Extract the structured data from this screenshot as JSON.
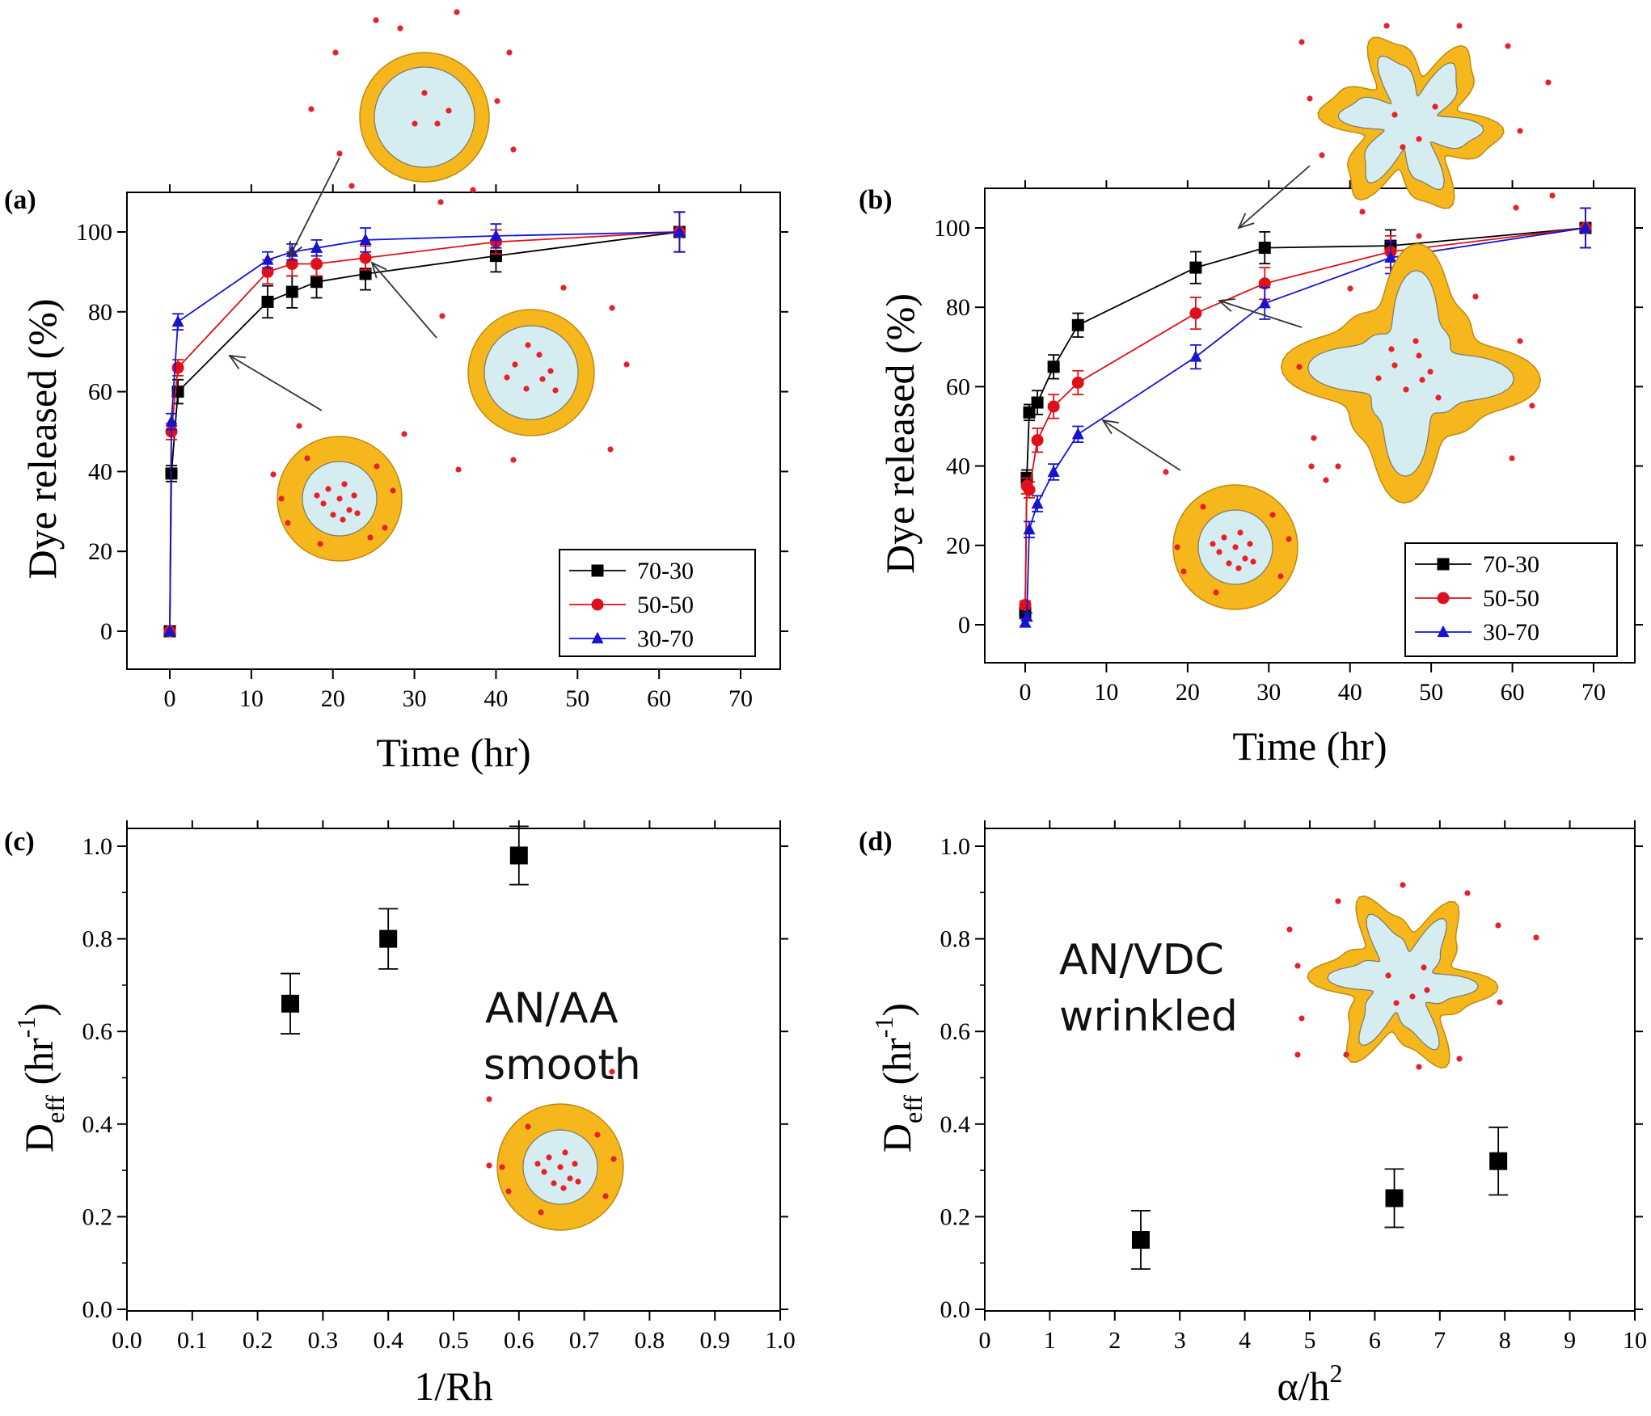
{
  "chart_data": [
    {
      "panel": "(a)",
      "type": "line",
      "xlabel": "Time (hr)",
      "ylabel": "Dye released (%)",
      "xlim": [
        -5,
        75
      ],
      "ylim": [
        -10,
        110
      ],
      "xticks": [
        "0",
        "10",
        "20",
        "30",
        "40",
        "50",
        "60",
        "70"
      ],
      "yticks": [
        "0",
        "20",
        "40",
        "60",
        "80",
        "100"
      ],
      "legend_position": "bottom-right",
      "series": [
        {
          "name": "70-30",
          "color": "#000000",
          "marker": "square",
          "x": [
            0,
            0.2,
            1,
            12,
            15,
            18,
            24,
            40,
            62.5
          ],
          "y": [
            0,
            39.5,
            60,
            82.5,
            85,
            87.5,
            89.5,
            94,
            100
          ],
          "err": [
            0,
            2,
            3,
            4,
            4,
            4,
            4,
            4,
            5
          ]
        },
        {
          "name": "50-50",
          "color": "#e0101a",
          "marker": "circle",
          "x": [
            0,
            0.2,
            1,
            12,
            15,
            18,
            24,
            40,
            62.5
          ],
          "y": [
            0,
            50,
            66,
            90,
            92,
            92,
            93.5,
            97.5,
            100
          ],
          "err": [
            0,
            2,
            2,
            3,
            3,
            3,
            3,
            3,
            5
          ]
        },
        {
          "name": "30-70",
          "color": "#1515d0",
          "marker": "triangle",
          "x": [
            0,
            0.2,
            1,
            12,
            15,
            18,
            24,
            40,
            62.5
          ],
          "y": [
            0,
            52.5,
            77.5,
            93,
            95,
            96,
            98,
            99,
            100
          ],
          "err": [
            0,
            2,
            2,
            2,
            2,
            2,
            3,
            3,
            5
          ]
        }
      ]
    },
    {
      "panel": "(b)",
      "type": "line",
      "xlabel": "Time (hr)",
      "ylabel": "Dye released (%)",
      "xlim": [
        -5,
        75
      ],
      "ylim": [
        -10,
        110
      ],
      "xticks": [
        "0",
        "10",
        "20",
        "30",
        "40",
        "50",
        "60",
        "70"
      ],
      "yticks": [
        "0",
        "20",
        "40",
        "60",
        "80",
        "100"
      ],
      "legend_position": "bottom-right",
      "series": [
        {
          "name": "70-30",
          "color": "#000000",
          "marker": "square",
          "x": [
            0,
            0.2,
            0.5,
            1.5,
            3.5,
            6.5,
            21,
            29.5,
            45,
            69
          ],
          "y": [
            3,
            37,
            53.5,
            56,
            65,
            75.5,
            90,
            95,
            95.5,
            100
          ],
          "err": [
            1,
            2,
            2,
            3,
            3,
            3,
            4,
            4,
            4,
            5
          ]
        },
        {
          "name": "50-50",
          "color": "#e0101a",
          "marker": "circle",
          "x": [
            0,
            0.2,
            0.5,
            1.5,
            3.5,
            6.5,
            21,
            29.5,
            45,
            69
          ],
          "y": [
            5,
            35,
            34,
            46.5,
            55,
            61,
            78.5,
            86,
            94,
            100
          ],
          "err": [
            1,
            2,
            2,
            3,
            3,
            3,
            4,
            4,
            4,
            5
          ]
        },
        {
          "name": "30-70",
          "color": "#1515d0",
          "marker": "triangle",
          "x": [
            0,
            0.2,
            0.5,
            1.5,
            3.5,
            6.5,
            21,
            29.5,
            45,
            69
          ],
          "y": [
            0.5,
            2,
            24,
            30.5,
            38.5,
            48,
            67.5,
            81,
            92.5,
            100
          ],
          "err": [
            1,
            1,
            2,
            2,
            2,
            2,
            3,
            4,
            4,
            5
          ]
        }
      ]
    },
    {
      "panel": "(c)",
      "type": "scatter",
      "xlabel": "1/Rh",
      "ylabel": "D",
      "ylabel_sub": "eff",
      "ylabel_rest": " (hr",
      "ylabel_sup": "-1",
      "ylabel_end": ")",
      "xlim": [
        0,
        1
      ],
      "ylim": [
        0,
        1
      ],
      "xticks": [
        "0.0",
        "0.1",
        "0.2",
        "0.3",
        "0.4",
        "0.5",
        "0.6",
        "0.7",
        "0.8",
        "0.9",
        "1.0"
      ],
      "yticks": [
        "0.0",
        "0.2",
        "0.4",
        "0.6",
        "0.8",
        "1.0"
      ],
      "note": [
        "AN/AA",
        "smooth"
      ],
      "x": [
        0.25,
        0.4,
        0.6
      ],
      "y": [
        0.66,
        0.8,
        0.98
      ],
      "err": [
        0.065,
        0.065,
        0.063
      ]
    },
    {
      "panel": "(d)",
      "type": "scatter",
      "xlabel": "α/h",
      "xlabel_sup": "2",
      "ylabel": "D",
      "ylabel_sub": "eff",
      "ylabel_rest": " (hr",
      "ylabel_sup": "-1",
      "ylabel_end": ")",
      "xlim": [
        0,
        10
      ],
      "ylim": [
        0,
        1
      ],
      "xticks": [
        "0",
        "1",
        "2",
        "3",
        "4",
        "5",
        "6",
        "7",
        "8",
        "9",
        "10"
      ],
      "yticks": [
        "0.0",
        "0.2",
        "0.4",
        "0.6",
        "0.8",
        "1.0"
      ],
      "note": [
        "AN/VDC",
        "wrinkled"
      ],
      "x": [
        2.4,
        6.3,
        7.9
      ],
      "y": [
        0.15,
        0.24,
        0.32
      ],
      "err": [
        0.063,
        0.063,
        0.073
      ]
    }
  ],
  "colors": {
    "shell": "#f5b71b",
    "shell_edge": "#c08a10",
    "core": "#d5ecf1",
    "dot": "#e8202a"
  }
}
